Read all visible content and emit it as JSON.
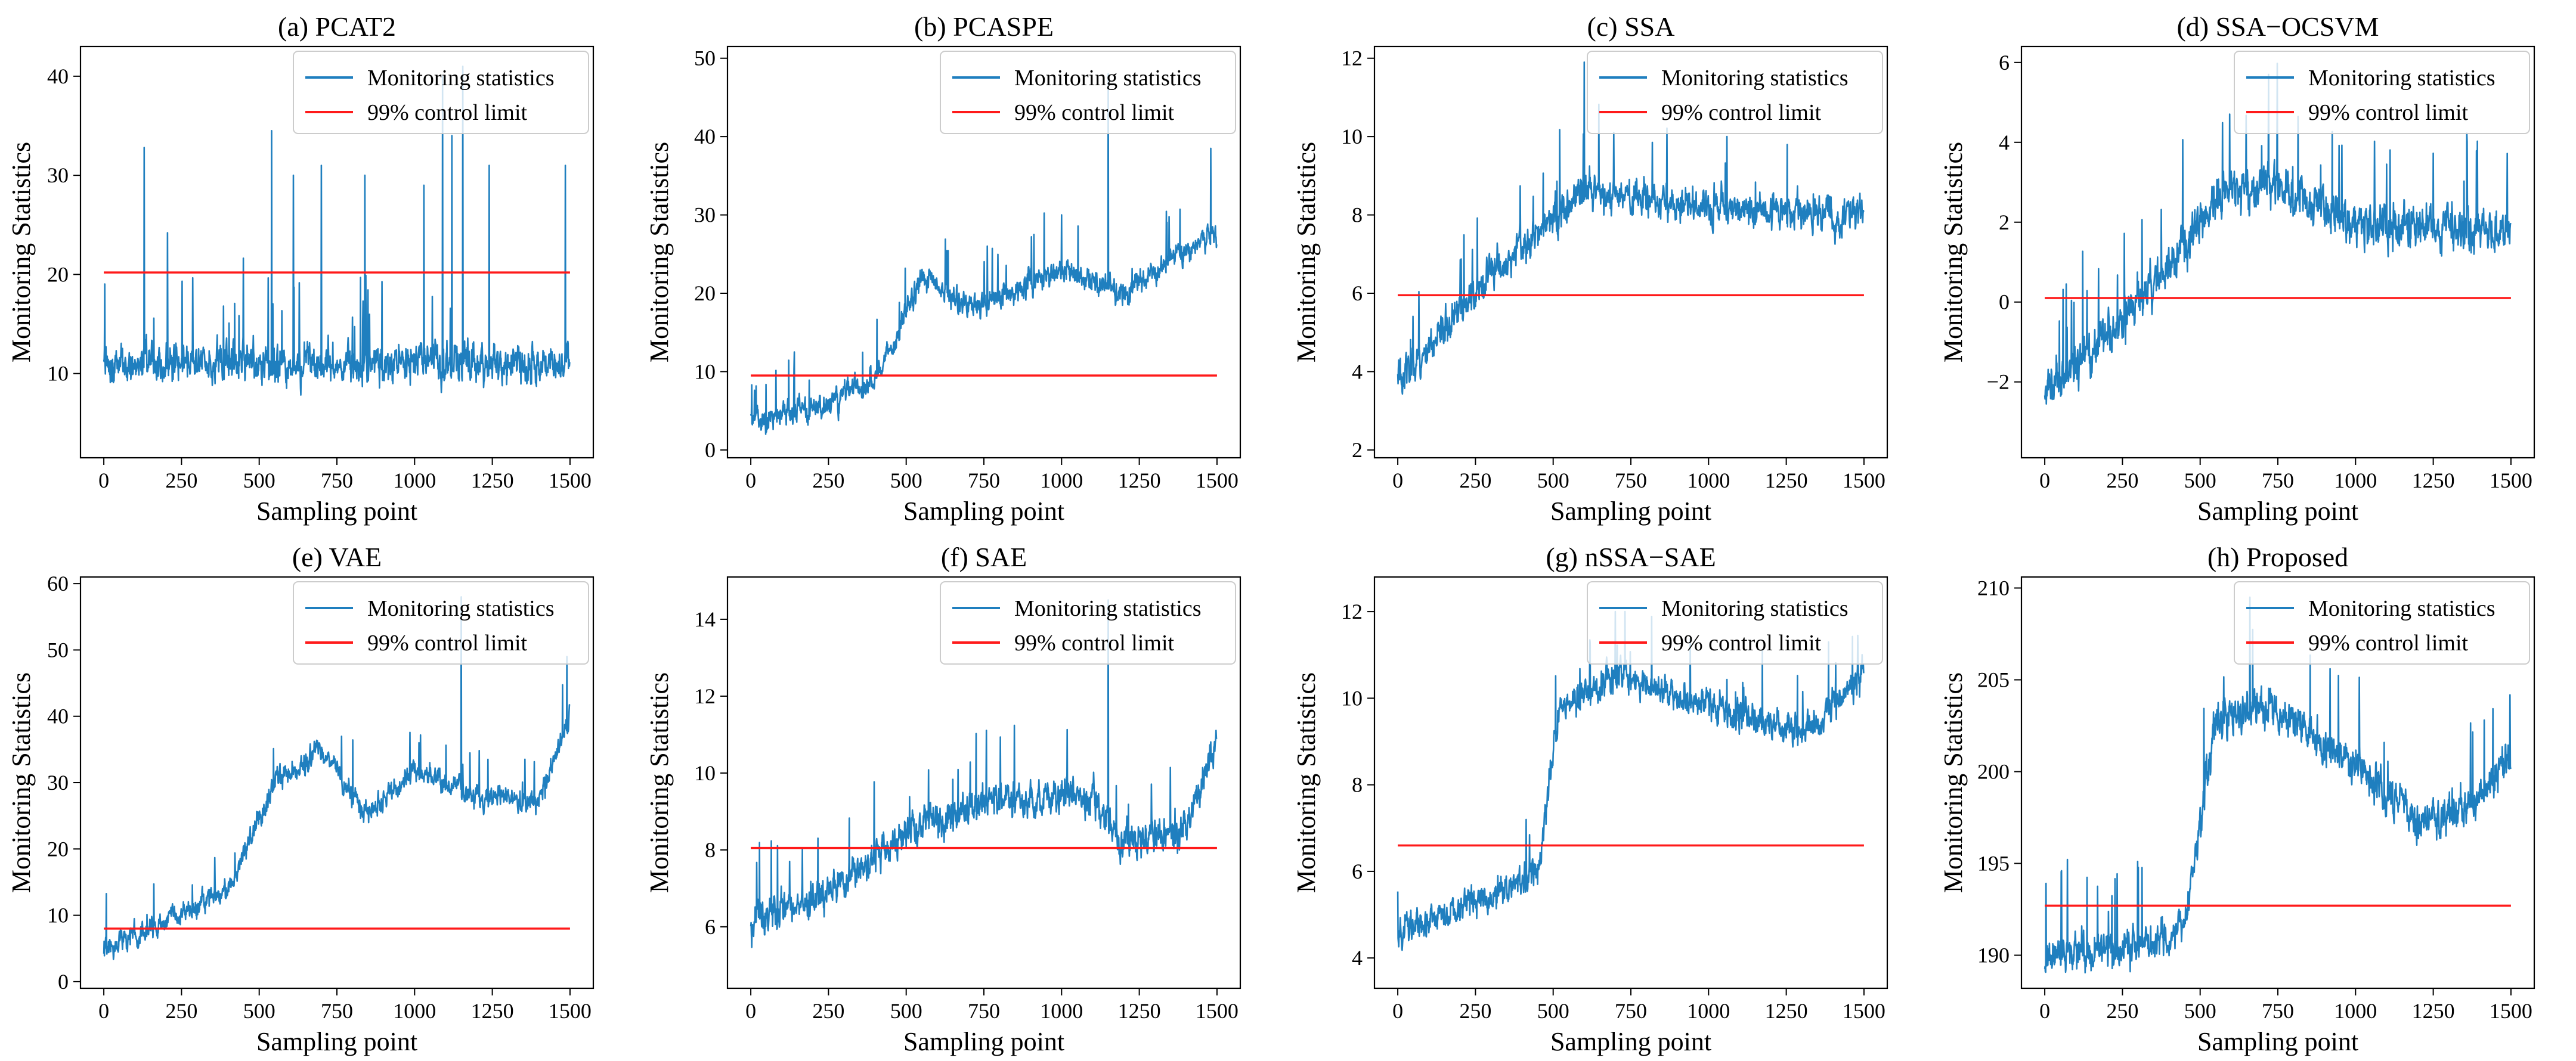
{
  "colors": {
    "series": "#1f7fbf",
    "limit": "#ff1a1a",
    "axis": "#000000",
    "legend_border": "#cccccc"
  },
  "chart_data": [
    {
      "type": "line",
      "title": "(a) PCAT2",
      "xlabel": "Sampling point",
      "ylabel": "Monitoring Statistics",
      "xlim": [
        -75,
        1575
      ],
      "ylim": [
        1.5,
        43
      ],
      "xticks": [
        0,
        250,
        500,
        750,
        1000,
        1250,
        1500
      ],
      "yticks": [
        10,
        20,
        30,
        40
      ],
      "legend": {
        "position": "top-right",
        "entries": [
          "Monitoring statistics",
          "99% control limit"
        ]
      },
      "control_limit": 20.2,
      "series": {
        "n_points": 1500,
        "profile": [
          [
            0,
            11
          ],
          [
            1500,
            11
          ]
        ],
        "noise": 3.2,
        "min": 3.5,
        "max": 41,
        "spikes": [
          [
            130,
            32.8
          ],
          [
            205,
            24.2
          ],
          [
            540,
            34.5
          ],
          [
            610,
            30
          ],
          [
            700,
            31
          ],
          [
            840,
            30
          ],
          [
            1030,
            29
          ],
          [
            1090,
            40
          ],
          [
            1120,
            34
          ],
          [
            1155,
            41
          ],
          [
            1240,
            31
          ],
          [
            1485,
            31
          ]
        ]
      }
    },
    {
      "type": "line",
      "title": "(b) PCASPE",
      "xlabel": "Sampling point",
      "ylabel": "Monitoring Statistics",
      "xlim": [
        -75,
        1575
      ],
      "ylim": [
        -1,
        51.5
      ],
      "xticks": [
        0,
        250,
        500,
        750,
        1000,
        1250,
        1500
      ],
      "yticks": [
        0,
        10,
        20,
        30,
        40,
        50
      ],
      "legend": {
        "position": "top-right",
        "entries": [
          "Monitoring statistics",
          "99% control limit"
        ]
      },
      "control_limit": 9.5,
      "series": {
        "n_points": 1500,
        "profile": [
          [
            0,
            3.5
          ],
          [
            200,
            5
          ],
          [
            400,
            9
          ],
          [
            550,
            22
          ],
          [
            700,
            18
          ],
          [
            1000,
            23
          ],
          [
            1200,
            20
          ],
          [
            1500,
            28
          ]
        ],
        "noise": 2.6,
        "min": 1.8,
        "max": 49,
        "spikes": [
          [
            140,
            12.5
          ],
          [
            1150,
            48
          ],
          [
            1000,
            30
          ],
          [
            1480,
            38.5
          ]
        ]
      }
    },
    {
      "type": "line",
      "title": "(c) SSA",
      "xlabel": "Sampling point",
      "ylabel": "Monitoring Statistics",
      "xlim": [
        -75,
        1575
      ],
      "ylim": [
        1.8,
        12.3
      ],
      "xticks": [
        0,
        250,
        500,
        750,
        1000,
        1250,
        1500
      ],
      "yticks": [
        2,
        4,
        6,
        8,
        10,
        12
      ],
      "legend": {
        "position": "top-right",
        "entries": [
          "Monitoring statistics",
          "99% control limit"
        ]
      },
      "control_limit": 5.95,
      "series": {
        "n_points": 1500,
        "profile": [
          [
            0,
            3.8
          ],
          [
            100,
            4.5
          ],
          [
            300,
            6.5
          ],
          [
            600,
            8.6
          ],
          [
            1000,
            8.2
          ],
          [
            1500,
            8.0
          ]
        ],
        "noise": 0.75,
        "min": 2.3,
        "max": 11.9,
        "spikes": [
          [
            600,
            11.9
          ],
          [
            1500,
            10.6
          ]
        ]
      }
    },
    {
      "type": "line",
      "title": "(d) SSA−OCSVM",
      "xlabel": "Sampling point",
      "ylabel": "Monitoring Statistics",
      "xlim": [
        -75,
        1575
      ],
      "ylim": [
        -3.9,
        6.4
      ],
      "xticks": [
        0,
        250,
        500,
        750,
        1000,
        1250,
        1500
      ],
      "yticks": [
        -2,
        0,
        2,
        4,
        6
      ],
      "legend": {
        "position": "top-right",
        "entries": [
          "Monitoring statistics",
          "99% control limit"
        ]
      },
      "control_limit": 0.1,
      "series": {
        "n_points": 1500,
        "profile": [
          [
            0,
            -2.3
          ],
          [
            150,
            -1.2
          ],
          [
            350,
            0.5
          ],
          [
            550,
            2.6
          ],
          [
            750,
            3
          ],
          [
            1000,
            2
          ],
          [
            1500,
            1.7
          ]
        ],
        "noise": 0.9,
        "min": -3.5,
        "max": 6,
        "spikes": [
          [
            720,
            5.7
          ]
        ]
      }
    },
    {
      "type": "line",
      "title": "(e) VAE",
      "xlabel": "Sampling point",
      "ylabel": "Monitoring Statistics",
      "xlim": [
        -75,
        1575
      ],
      "ylim": [
        -1,
        61
      ],
      "xticks": [
        0,
        250,
        500,
        750,
        1000,
        1250,
        1500
      ],
      "yticks": [
        0,
        10,
        20,
        30,
        40,
        50,
        60
      ],
      "legend": {
        "position": "top-right",
        "entries": [
          "Monitoring statistics",
          "99% control limit"
        ]
      },
      "control_limit": 8,
      "series": {
        "n_points": 1500,
        "profile": [
          [
            0,
            5
          ],
          [
            200,
            9
          ],
          [
            400,
            14
          ],
          [
            550,
            30
          ],
          [
            700,
            35
          ],
          [
            850,
            25
          ],
          [
            1000,
            32
          ],
          [
            1200,
            28
          ],
          [
            1400,
            27
          ],
          [
            1500,
            40
          ]
        ],
        "noise": 2.9,
        "min": 2,
        "max": 60,
        "spikes": [
          [
            1150,
            58
          ],
          [
            1490,
            49
          ]
        ]
      }
    },
    {
      "type": "line",
      "title": "(f) SAE",
      "xlabel": "Sampling point",
      "ylabel": "Monitoring Statistics",
      "xlim": [
        -75,
        1575
      ],
      "ylim": [
        4.4,
        15.1
      ],
      "xticks": [
        0,
        250,
        500,
        750,
        1000,
        1250,
        1500
      ],
      "yticks": [
        6,
        8,
        10,
        12,
        14
      ],
      "legend": {
        "position": "top-right",
        "entries": [
          "Monitoring statistics",
          "99% control limit"
        ]
      },
      "control_limit": 8.05,
      "series": {
        "n_points": 1500,
        "profile": [
          [
            0,
            6
          ],
          [
            300,
            7.2
          ],
          [
            500,
            8.5
          ],
          [
            800,
            9.3
          ],
          [
            1100,
            9.4
          ],
          [
            1200,
            8.2
          ],
          [
            1400,
            8.5
          ],
          [
            1500,
            11
          ]
        ],
        "noise": 0.75,
        "min": 4.9,
        "max": 14.5,
        "spikes": [
          [
            1150,
            14.5
          ],
          [
            1500,
            14
          ]
        ]
      }
    },
    {
      "type": "line",
      "title": "(g) nSSA−SAE",
      "xlabel": "Sampling point",
      "ylabel": "Monitoring Statistics",
      "xlim": [
        -75,
        1575
      ],
      "ylim": [
        3.3,
        12.8
      ],
      "xticks": [
        0,
        250,
        500,
        750,
        1000,
        1250,
        1500
      ],
      "yticks": [
        4,
        6,
        8,
        10,
        12
      ],
      "legend": {
        "position": "top-right",
        "entries": [
          "Monitoring statistics",
          "99% control limit"
        ]
      },
      "control_limit": 6.6,
      "series": {
        "n_points": 1500,
        "profile": [
          [
            0,
            4.6
          ],
          [
            300,
            5.4
          ],
          [
            450,
            6
          ],
          [
            520,
            9.8
          ],
          [
            700,
            10.5
          ],
          [
            1000,
            9.8
          ],
          [
            1300,
            9.2
          ],
          [
            1500,
            10.5
          ]
        ],
        "noise": 0.6,
        "min": 3.8,
        "max": 12,
        "spikes": [
          [
            700,
            12
          ]
        ]
      }
    },
    {
      "type": "line",
      "title": "(h) Proposed",
      "xlabel": "Sampling point",
      "ylabel": "Monitoring Statistics",
      "xlim": [
        -75,
        1575
      ],
      "ylim": [
        188.2,
        210.6
      ],
      "xticks": [
        0,
        250,
        500,
        750,
        1000,
        1250,
        1500
      ],
      "yticks": [
        190,
        195,
        200,
        205,
        210
      ],
      "legend": {
        "position": "top-right",
        "entries": [
          "Monitoring statistics",
          "99% control limit"
        ]
      },
      "control_limit": 192.7,
      "series": {
        "n_points": 1500,
        "profile": [
          [
            0,
            190
          ],
          [
            300,
            190.4
          ],
          [
            450,
            191.5
          ],
          [
            550,
            203
          ],
          [
            700,
            203.5
          ],
          [
            1000,
            200.5
          ],
          [
            1200,
            197
          ],
          [
            1400,
            198.5
          ],
          [
            1500,
            201
          ]
        ],
        "noise": 1.7,
        "min": 189,
        "max": 209.5,
        "spikes": [
          [
            660,
            209.5
          ],
          [
            1500,
            206
          ]
        ]
      }
    }
  ]
}
